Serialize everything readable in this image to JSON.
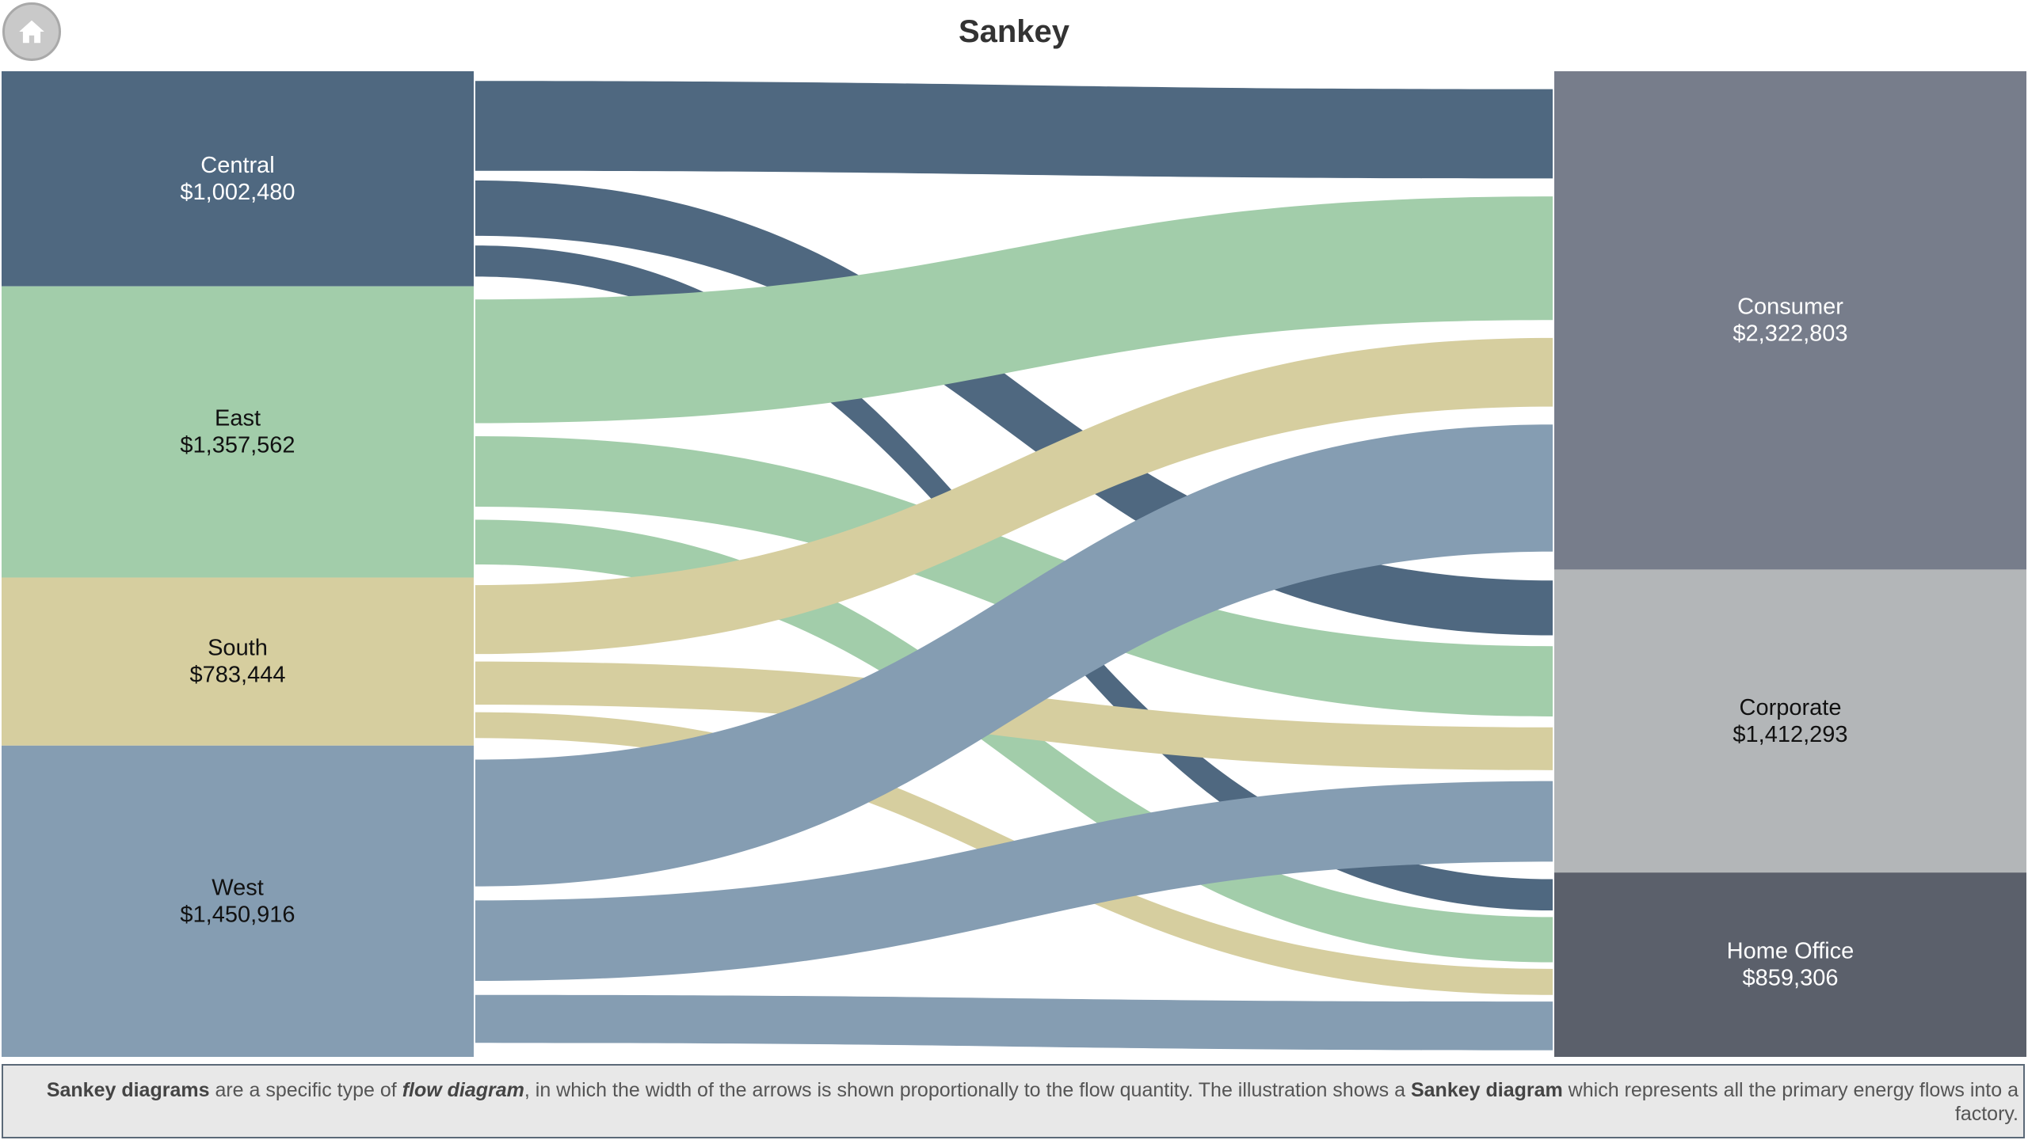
{
  "header": {
    "title": "Sankey",
    "home_icon": "home-icon"
  },
  "chart_data": {
    "type": "sankey",
    "title": "Sankey",
    "sources": [
      {
        "id": "central",
        "name": "Central",
        "value_label": "$1,002,480",
        "value": 1002480,
        "color": "#4f6880",
        "text_color": "#ffffff"
      },
      {
        "id": "east",
        "name": "East",
        "value_label": "$1,357,562",
        "value": 1357562,
        "color": "#a2cdaa",
        "text_color": "#111111"
      },
      {
        "id": "south",
        "name": "South",
        "value_label": "$783,444",
        "value": 783444,
        "color": "#d6ce9f",
        "text_color": "#111111"
      },
      {
        "id": "west",
        "name": "West",
        "value_label": "$1,450,916",
        "value": 1450916,
        "color": "#859db2",
        "text_color": "#111111"
      }
    ],
    "targets": [
      {
        "id": "consumer",
        "name": "Consumer",
        "value_label": "$2,322,803",
        "value": 2322803,
        "color": "#777d8b",
        "text_color": "#ffffff"
      },
      {
        "id": "corporate",
        "name": "Corporate",
        "value_label": "$1,412,293",
        "value": 1412293,
        "color": "#b3b6b8",
        "text_color": "#111111"
      },
      {
        "id": "home_office",
        "name": "Home Office",
        "value_label": "$859,306",
        "value": 859306,
        "color": "#5b606b",
        "text_color": "#ffffff"
      }
    ],
    "links": [
      {
        "source": "central",
        "target": "consumer",
        "value": 520000
      },
      {
        "source": "central",
        "target": "corporate",
        "value": 320000
      },
      {
        "source": "central",
        "target": "home_office",
        "value": 180000
      },
      {
        "source": "east",
        "target": "consumer",
        "value": 720000
      },
      {
        "source": "east",
        "target": "corporate",
        "value": 410000
      },
      {
        "source": "east",
        "target": "home_office",
        "value": 260000
      },
      {
        "source": "south",
        "target": "consumer",
        "value": 400000
      },
      {
        "source": "south",
        "target": "corporate",
        "value": 250000
      },
      {
        "source": "south",
        "target": "home_office",
        "value": 150000
      },
      {
        "source": "west",
        "target": "consumer",
        "value": 740000
      },
      {
        "source": "west",
        "target": "corporate",
        "value": 470000
      },
      {
        "source": "west",
        "target": "home_office",
        "value": 280000
      }
    ]
  },
  "description": {
    "parts": [
      {
        "text": "Sankey diagrams",
        "style": "b"
      },
      {
        "text": " are a specific type of ",
        "style": ""
      },
      {
        "text": "flow diagram",
        "style": "i"
      },
      {
        "text": ", in which the width of the arrows is shown proportionally to the flow quantity. The illustration shows a ",
        "style": ""
      },
      {
        "text": "Sankey diagram",
        "style": "b"
      },
      {
        "text": " which represents all the primary energy flows into a factory.",
        "style": ""
      }
    ]
  }
}
